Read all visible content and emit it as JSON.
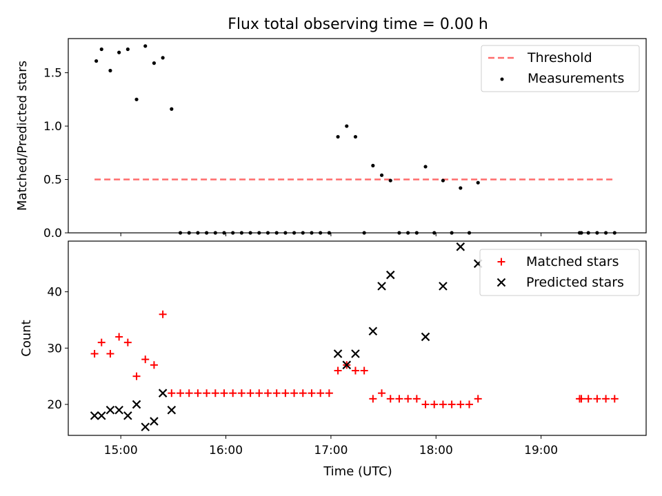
{
  "figure_title": "Flux total observing time = 0.00 h",
  "colors": {
    "threshold": "#ff6b6b",
    "measurements": "#000000",
    "matched": "#ff0000",
    "predicted": "#000000"
  },
  "chart_data": [
    {
      "type": "scatter",
      "title": "Flux total observing time = 0.00 h",
      "xlabel": "",
      "ylabel": "Matched/Predicted stars",
      "xlim": [
        "14:30",
        "20:00"
      ],
      "ylim": [
        0,
        1.82
      ],
      "yticks": [
        "0.0",
        "0.5",
        "1.0",
        "1.5"
      ],
      "grid": false,
      "legend_position": "top-right",
      "legend": [
        {
          "name": "Threshold",
          "style": "dashed-line"
        },
        {
          "name": "Measurements",
          "style": "dot"
        }
      ],
      "threshold": {
        "name": "Threshold",
        "value": 0.5,
        "x_from": "14:45",
        "x_to": "19:42"
      },
      "series": [
        {
          "name": "Measurements",
          "points": [
            [
              "14:46",
              1.61
            ],
            [
              "14:49",
              1.72
            ],
            [
              "14:54",
              1.52
            ],
            [
              "14:59",
              1.69
            ],
            [
              "15:04",
              1.72
            ],
            [
              "15:09",
              1.25
            ],
            [
              "15:14",
              1.75
            ],
            [
              "15:19",
              1.59
            ],
            [
              "15:24",
              1.64
            ],
            [
              "15:29",
              1.16
            ],
            [
              "15:34",
              0
            ],
            [
              "15:39",
              0
            ],
            [
              "15:44",
              0
            ],
            [
              "15:49",
              0
            ],
            [
              "15:54",
              0
            ],
            [
              "15:59",
              0
            ],
            [
              "16:04",
              0
            ],
            [
              "16:09",
              0
            ],
            [
              "16:14",
              0
            ],
            [
              "16:19",
              0
            ],
            [
              "16:24",
              0
            ],
            [
              "16:29",
              0
            ],
            [
              "16:34",
              0
            ],
            [
              "16:39",
              0
            ],
            [
              "16:44",
              0
            ],
            [
              "16:49",
              0
            ],
            [
              "16:54",
              0
            ],
            [
              "16:59",
              0
            ],
            [
              "17:04",
              0.9
            ],
            [
              "17:09",
              1.0
            ],
            [
              "17:14",
              0.9
            ],
            [
              "17:19",
              0
            ],
            [
              "17:24",
              0.63
            ],
            [
              "17:29",
              0.54
            ],
            [
              "17:34",
              0.49
            ],
            [
              "17:39",
              0
            ],
            [
              "17:44",
              0
            ],
            [
              "17:49",
              0
            ],
            [
              "17:54",
              0.62
            ],
            [
              "17:59",
              0
            ],
            [
              "18:04",
              0.49
            ],
            [
              "18:09",
              0
            ],
            [
              "18:14",
              0.42
            ],
            [
              "18:19",
              0
            ],
            [
              "18:24",
              0.47
            ],
            [
              "19:22",
              0
            ],
            [
              "19:23",
              0
            ],
            [
              "19:27",
              0
            ],
            [
              "19:32",
              0
            ],
            [
              "19:37",
              0
            ],
            [
              "19:42",
              0
            ]
          ]
        }
      ]
    },
    {
      "type": "scatter",
      "title": "",
      "xlabel": "Time (UTC)",
      "ylabel": "Count",
      "xlim": [
        "14:30",
        "20:00"
      ],
      "ylim": [
        14.5,
        49
      ],
      "yticks": [
        "20",
        "30",
        "40"
      ],
      "xticks": [
        "15:00",
        "16:00",
        "17:00",
        "18:00",
        "19:00"
      ],
      "grid": false,
      "legend_position": "top-right",
      "legend": [
        {
          "name": "Matched stars",
          "style": "plus"
        },
        {
          "name": "Predicted stars",
          "style": "x"
        }
      ],
      "series": [
        {
          "name": "Matched stars",
          "points": [
            [
              "14:45",
              29
            ],
            [
              "14:49",
              31
            ],
            [
              "14:54",
              29
            ],
            [
              "14:59",
              32
            ],
            [
              "15:04",
              31
            ],
            [
              "15:09",
              25
            ],
            [
              "15:14",
              28
            ],
            [
              "15:19",
              27
            ],
            [
              "15:24",
              36
            ],
            [
              "15:29",
              22
            ],
            [
              "15:34",
              22
            ],
            [
              "15:39",
              22
            ],
            [
              "15:44",
              22
            ],
            [
              "15:49",
              22
            ],
            [
              "15:54",
              22
            ],
            [
              "15:59",
              22
            ],
            [
              "16:04",
              22
            ],
            [
              "16:09",
              22
            ],
            [
              "16:14",
              22
            ],
            [
              "16:19",
              22
            ],
            [
              "16:24",
              22
            ],
            [
              "16:29",
              22
            ],
            [
              "16:34",
              22
            ],
            [
              "16:39",
              22
            ],
            [
              "16:44",
              22
            ],
            [
              "16:49",
              22
            ],
            [
              "16:54",
              22
            ],
            [
              "16:59",
              22
            ],
            [
              "17:04",
              26
            ],
            [
              "17:09",
              27
            ],
            [
              "17:14",
              26
            ],
            [
              "17:19",
              26
            ],
            [
              "17:24",
              21
            ],
            [
              "17:29",
              22
            ],
            [
              "17:34",
              21
            ],
            [
              "17:39",
              21
            ],
            [
              "17:44",
              21
            ],
            [
              "17:49",
              21
            ],
            [
              "17:54",
              20
            ],
            [
              "17:59",
              20
            ],
            [
              "18:04",
              20
            ],
            [
              "18:09",
              20
            ],
            [
              "18:14",
              20
            ],
            [
              "18:19",
              20
            ],
            [
              "18:24",
              21
            ],
            [
              "19:22",
              21
            ],
            [
              "19:23",
              21
            ],
            [
              "19:27",
              21
            ],
            [
              "19:32",
              21
            ],
            [
              "19:37",
              21
            ],
            [
              "19:42",
              21
            ]
          ]
        },
        {
          "name": "Predicted stars",
          "points": [
            [
              "14:45",
              18
            ],
            [
              "14:49",
              18
            ],
            [
              "14:54",
              19
            ],
            [
              "14:59",
              19
            ],
            [
              "15:04",
              18
            ],
            [
              "15:09",
              20
            ],
            [
              "15:14",
              16
            ],
            [
              "15:19",
              17
            ],
            [
              "15:24",
              22
            ],
            [
              "15:29",
              19
            ],
            [
              "17:04",
              29
            ],
            [
              "17:09",
              27
            ],
            [
              "17:14",
              29
            ],
            [
              "17:24",
              33
            ],
            [
              "17:29",
              41
            ],
            [
              "17:34",
              43
            ],
            [
              "17:54",
              32
            ],
            [
              "18:04",
              41
            ],
            [
              "18:14",
              48
            ],
            [
              "18:24",
              45
            ]
          ]
        }
      ]
    }
  ]
}
